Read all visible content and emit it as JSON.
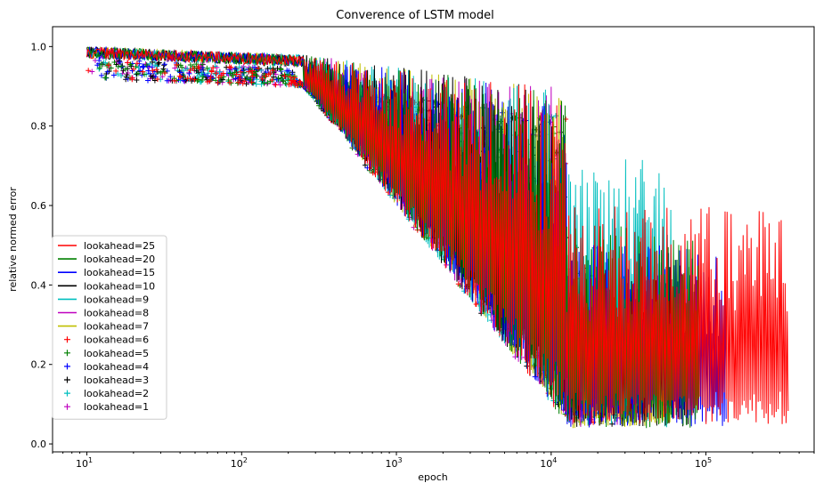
{
  "chart_data": {
    "type": "line",
    "title": "Converence of LSTM model",
    "xlabel": "epoch",
    "ylabel": "relative normed error",
    "xscale": "log",
    "xlim": [
      6,
      500000
    ],
    "ylim": [
      -0.02,
      1.05
    ],
    "xticks": [
      {
        "value": 10,
        "base": "10",
        "exp": "1"
      },
      {
        "value": 100,
        "base": "10",
        "exp": "2"
      },
      {
        "value": 1000,
        "base": "10",
        "exp": "3"
      },
      {
        "value": 10000,
        "base": "10",
        "exp": "4"
      },
      {
        "value": 100000,
        "base": "10",
        "exp": "5"
      }
    ],
    "yticks": [
      "0.0",
      "0.2",
      "0.4",
      "0.6",
      "0.8",
      "1.0"
    ],
    "grid": false,
    "legend_position": "center-left",
    "series": [
      {
        "name": "lookahead=25",
        "style": "line",
        "color": "#ff0000",
        "x_end": 340000,
        "lo_end": 0.05,
        "hi_end": 0.6
      },
      {
        "name": "lookahead=20",
        "style": "line",
        "color": "#008000",
        "x_end": 90000,
        "lo_end": 0.04,
        "hi_end": 0.55
      },
      {
        "name": "lookahead=15",
        "style": "line",
        "color": "#0000ff",
        "x_end": 135000,
        "lo_end": 0.04,
        "hi_end": 0.5
      },
      {
        "name": "lookahead=10",
        "style": "line",
        "color": "#000000",
        "x_end": 85000,
        "lo_end": 0.04,
        "hi_end": 0.45
      },
      {
        "name": "lookahead=9",
        "style": "line",
        "color": "#00bfbf",
        "x_end": 60000,
        "lo_end": 0.04,
        "hi_end": 0.72
      },
      {
        "name": "lookahead=8",
        "style": "line",
        "color": "#bf00bf",
        "x_end": 40000,
        "lo_end": 0.04,
        "hi_end": 0.4
      },
      {
        "name": "lookahead=7",
        "style": "line",
        "color": "#bfbf00",
        "x_end": 60000,
        "lo_end": 0.04,
        "hi_end": 0.25
      },
      {
        "name": "lookahead=6",
        "style": "marker",
        "color": "#ff0000",
        "x_end": 35000,
        "lo_end": 0.05,
        "hi_end": 0.3
      },
      {
        "name": "lookahead=5",
        "style": "marker",
        "color": "#008000",
        "x_end": 22000,
        "lo_end": 0.05,
        "hi_end": 0.5
      },
      {
        "name": "lookahead=4",
        "style": "marker",
        "color": "#0000ff",
        "x_end": 30000,
        "lo_end": 0.05,
        "hi_end": 0.35
      },
      {
        "name": "lookahead=3",
        "style": "marker",
        "color": "#000000",
        "x_end": 25000,
        "lo_end": 0.05,
        "hi_end": 0.3
      },
      {
        "name": "lookahead=2",
        "style": "marker",
        "color": "#00bfbf",
        "x_end": 16000,
        "lo_end": 0.04,
        "hi_end": 0.4
      },
      {
        "name": "lookahead=1",
        "style": "marker",
        "color": "#bf00bf",
        "x_end": 15000,
        "lo_end": 0.03,
        "hi_end": 0.3
      }
    ]
  }
}
